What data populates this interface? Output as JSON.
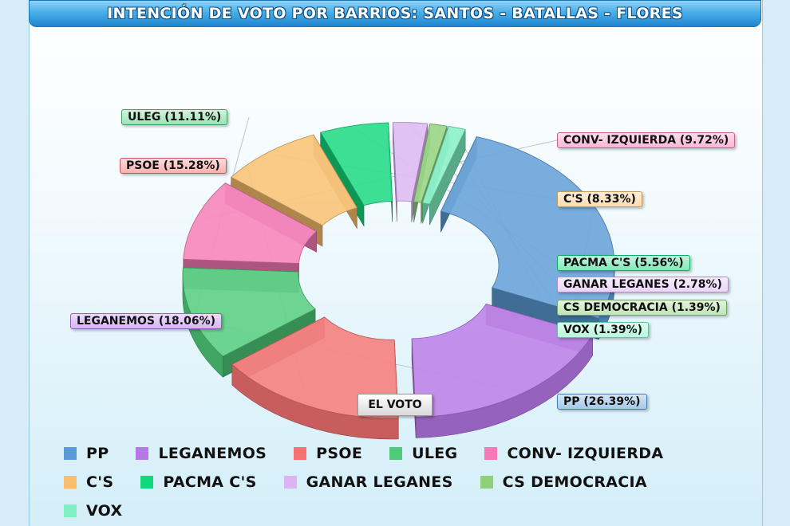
{
  "header": {
    "title": "INTENCIÓN DE VOTO POR BARRIOS: SANTOS - BATALLAS - FLORES"
  },
  "chart_data": {
    "type": "pie",
    "title": "INTENCIÓN DE VOTO POR BARRIOS: SANTOS - BATALLAS - FLORES",
    "center_label": "EL VOTO",
    "style": "3d-exploded-donut",
    "legend_placement": "bottom",
    "slices": [
      {
        "name": "PP",
        "value": 26.39,
        "label": "PP  (26.39%)",
        "color": "#5b9bd5"
      },
      {
        "name": "LEGANEMOS",
        "value": 18.06,
        "label": "LEGANEMOS (18.06%)",
        "color": "#b678e6"
      },
      {
        "name": "PSOE",
        "value": 15.28,
        "label": "PSOE (15.28%)",
        "color": "#f47272"
      },
      {
        "name": "ULEG",
        "value": 11.11,
        "label": "ULEG (11.11%)",
        "color": "#4ecb7a"
      },
      {
        "name": "CONV- IZQUIERDA",
        "value": 9.72,
        "label": "CONV- IZQUIERDA (9.72%)",
        "color": "#f67ab5"
      },
      {
        "name": "C'S",
        "value": 8.33,
        "label": "C'S  (8.33%)",
        "color": "#f9be6c"
      },
      {
        "name": "PACMA C'S",
        "value": 5.56,
        "label": "PACMA C'S (5.56%)",
        "color": "#12d87c"
      },
      {
        "name": "GANAR LEGANES",
        "value": 2.78,
        "label": "GANAR LEGANES (2.78%)",
        "color": "#dcb3f3"
      },
      {
        "name": "CS DEMOCRACIA",
        "value": 1.39,
        "label": "CS DEMOCRACIA (1.39%)",
        "color": "#8fd07a"
      },
      {
        "name": "VOX",
        "value": 1.39,
        "label": "VOX (1.39%)",
        "color": "#7ff0c2"
      }
    ]
  }
}
